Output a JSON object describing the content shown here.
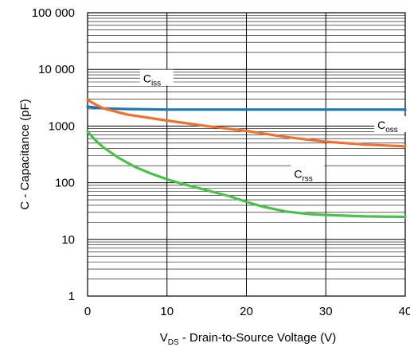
{
  "chart_data": {
    "type": "line",
    "title": "",
    "xlabel": {
      "main": "V",
      "sub": "DS",
      "rest": " - Drain-to-Source Voltage (V)"
    },
    "ylabel": "C - Capacitance (pF)",
    "xlim": [
      0,
      40
    ],
    "ylim": [
      1,
      100000
    ],
    "yscale": "log",
    "grid": true,
    "x_ticks": [
      0,
      10,
      20,
      30,
      40
    ],
    "x_tick_labels": [
      "0",
      "10",
      "20",
      "30",
      "40"
    ],
    "y_ticks": [
      1,
      10,
      100,
      1000,
      10000,
      100000
    ],
    "y_tick_labels": [
      "1",
      "10",
      "100",
      "1000",
      "10 000",
      "100 000"
    ],
    "series": [
      {
        "label_main": "C",
        "label_sub": "iss",
        "label_x": 7,
        "label_y": 6500,
        "color": "#1f77b4",
        "x": [
          0,
          2,
          5,
          10,
          20,
          30,
          40
        ],
        "y": [
          2200,
          2050,
          2000,
          1950,
          1950,
          1950,
          1950
        ]
      },
      {
        "label_main": "C",
        "label_sub": "oss",
        "label_x": 36.5,
        "label_y": 980,
        "color": "#f07030",
        "x": [
          0,
          1,
          2,
          5,
          10,
          15,
          20,
          25,
          30,
          35,
          40
        ],
        "y": [
          2900,
          2400,
          2050,
          1600,
          1250,
          1000,
          820,
          640,
          530,
          470,
          440
        ]
      },
      {
        "label_main": "C",
        "label_sub": "rss",
        "label_x": 26,
        "label_y": 135,
        "color": "#4cbf4c",
        "x": [
          0,
          1,
          2,
          4,
          6,
          8,
          10,
          12,
          15,
          18,
          20,
          22,
          25,
          28,
          30,
          35,
          40
        ],
        "y": [
          800,
          560,
          420,
          270,
          190,
          145,
          115,
          95,
          74,
          57,
          46,
          38,
          31,
          28,
          27,
          25.5,
          25
        ]
      }
    ]
  }
}
